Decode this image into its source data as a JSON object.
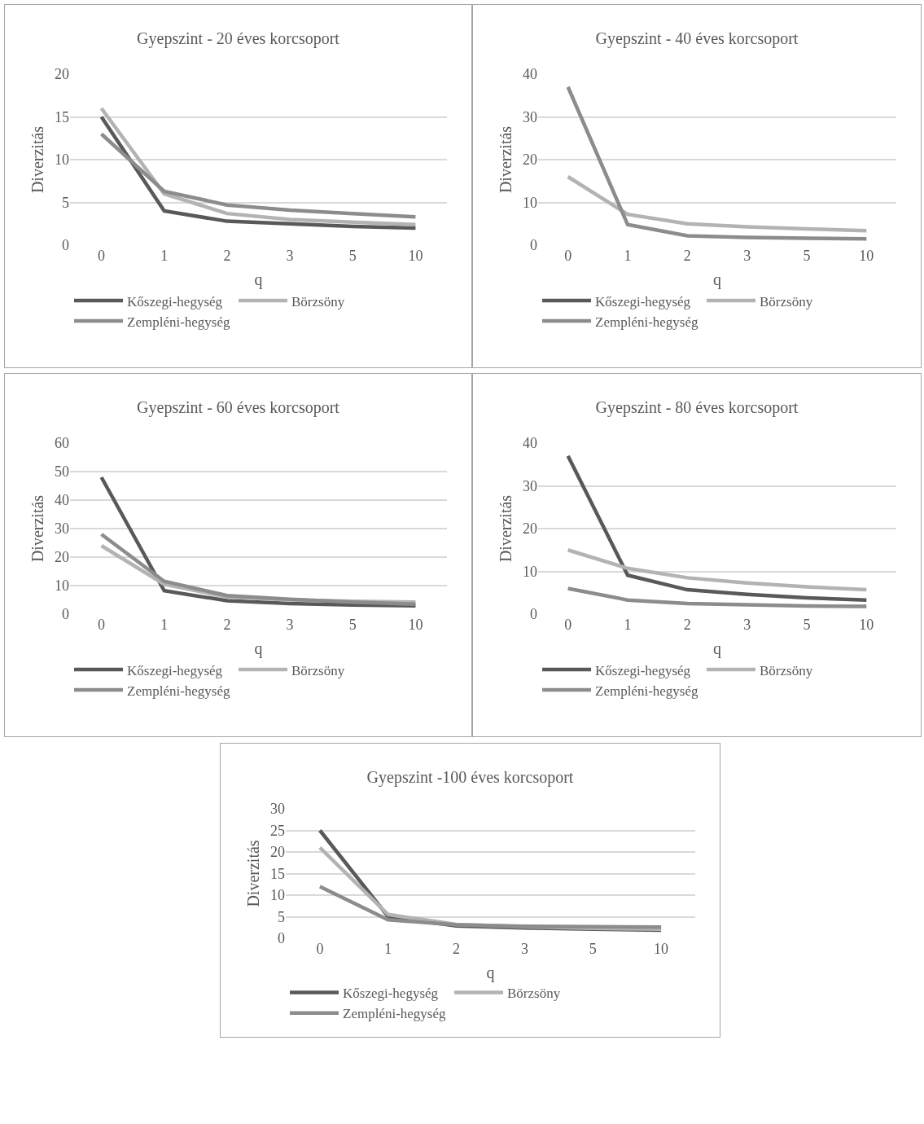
{
  "chart_data": [
    {
      "type": "line",
      "title": "Gyepszint - 20 éves korcsoport",
      "xlabel": "q",
      "ylabel": "Diverzitás",
      "categories": [
        "0",
        "1",
        "2",
        "3",
        "5",
        "10"
      ],
      "ylim": [
        0,
        20
      ],
      "yticks": [
        0,
        5,
        10,
        15,
        20
      ],
      "grid": "y",
      "legend": "bottom",
      "series": [
        {
          "name": "Kőszegi-hegység",
          "color": "#595959",
          "values": [
            15,
            4,
            2.8,
            2.5,
            2.2,
            2.0
          ]
        },
        {
          "name": "Börzsöny",
          "color": "#b3b3b3",
          "values": [
            16,
            6,
            3.7,
            3.0,
            2.7,
            2.4
          ]
        },
        {
          "name": "Zempléni-hegység",
          "color": "#8c8c8c",
          "values": [
            13,
            6.3,
            4.7,
            4.1,
            3.7,
            3.3
          ]
        }
      ]
    },
    {
      "type": "line",
      "title": "Gyepszint - 40 éves korcsoport",
      "xlabel": "q",
      "ylabel": "Diverzitás",
      "categories": [
        "0",
        "1",
        "2",
        "3",
        "5",
        "10"
      ],
      "ylim": [
        0,
        40
      ],
      "yticks": [
        0,
        10,
        20,
        30,
        40
      ],
      "grid": "y",
      "legend": "bottom",
      "series": [
        {
          "name": "Kőszegi-hegység",
          "color": "#595959",
          "values": [
            null,
            null,
            null,
            null,
            null,
            null
          ]
        },
        {
          "name": "Börzsöny",
          "color": "#b3b3b3",
          "values": [
            16,
            7.2,
            5.0,
            4.3,
            3.8,
            3.4
          ]
        },
        {
          "name": "Zempléni-hegység",
          "color": "#8c8c8c",
          "values": [
            37,
            4.8,
            2.2,
            1.8,
            1.6,
            1.5
          ]
        }
      ]
    },
    {
      "type": "line",
      "title": "Gyepszint - 60 éves korcsoport",
      "xlabel": "q",
      "ylabel": "Diverzitás",
      "categories": [
        "0",
        "1",
        "2",
        "3",
        "5",
        "10"
      ],
      "ylim": [
        0,
        60
      ],
      "yticks": [
        0,
        10,
        20,
        30,
        40,
        50,
        60
      ],
      "grid": "y",
      "legend": "bottom",
      "series": [
        {
          "name": "Kőszegi-hegység",
          "color": "#595959",
          "values": [
            48,
            8.2,
            4.7,
            3.7,
            3.2,
            2.9
          ]
        },
        {
          "name": "Börzsöny",
          "color": "#b3b3b3",
          "values": [
            24,
            10.5,
            6,
            5,
            4.5,
            4.2
          ]
        },
        {
          "name": "Zempléni-hegység",
          "color": "#8c8c8c",
          "values": [
            28,
            11.5,
            6.5,
            5.2,
            4.2,
            3.5
          ]
        }
      ]
    },
    {
      "type": "line",
      "title": "Gyepszint - 80 éves korcsoport",
      "xlabel": "q",
      "ylabel": "Diverzitás",
      "categories": [
        "0",
        "1",
        "2",
        "3",
        "5",
        "10"
      ],
      "ylim": [
        0,
        40
      ],
      "yticks": [
        0,
        10,
        20,
        30,
        40
      ],
      "grid": "y",
      "legend": "bottom",
      "series": [
        {
          "name": "Kőszegi-hegység",
          "color": "#595959",
          "values": [
            37,
            9.1,
            5.7,
            4.6,
            3.8,
            3.3
          ]
        },
        {
          "name": "Börzsöny",
          "color": "#b3b3b3",
          "values": [
            15,
            10.7,
            8.5,
            7.3,
            6.4,
            5.7
          ]
        },
        {
          "name": "Zempléni-hegység",
          "color": "#8c8c8c",
          "values": [
            6,
            3.3,
            2.5,
            2.2,
            1.9,
            1.8
          ]
        }
      ]
    },
    {
      "type": "line",
      "title": "Gyepszint -100 éves korcsoport",
      "xlabel": "q",
      "ylabel": "Diverzitás",
      "categories": [
        "0",
        "1",
        "2",
        "3",
        "5",
        "10"
      ],
      "ylim": [
        0,
        30
      ],
      "yticks": [
        0,
        5,
        10,
        15,
        20,
        25,
        30
      ],
      "grid": "y",
      "legend": "bottom",
      "series": [
        {
          "name": "Kőszegi-hegység",
          "color": "#595959",
          "values": [
            25,
            5,
            2.9,
            2.4,
            2.1,
            1.9
          ]
        },
        {
          "name": "Börzsöny",
          "color": "#b3b3b3",
          "values": [
            21,
            5.5,
            3.2,
            2.7,
            2.3,
            2.1
          ]
        },
        {
          "name": "Zempléni-hegység",
          "color": "#8c8c8c",
          "values": [
            12,
            4.3,
            3.1,
            2.8,
            2.7,
            2.6
          ]
        }
      ]
    }
  ]
}
